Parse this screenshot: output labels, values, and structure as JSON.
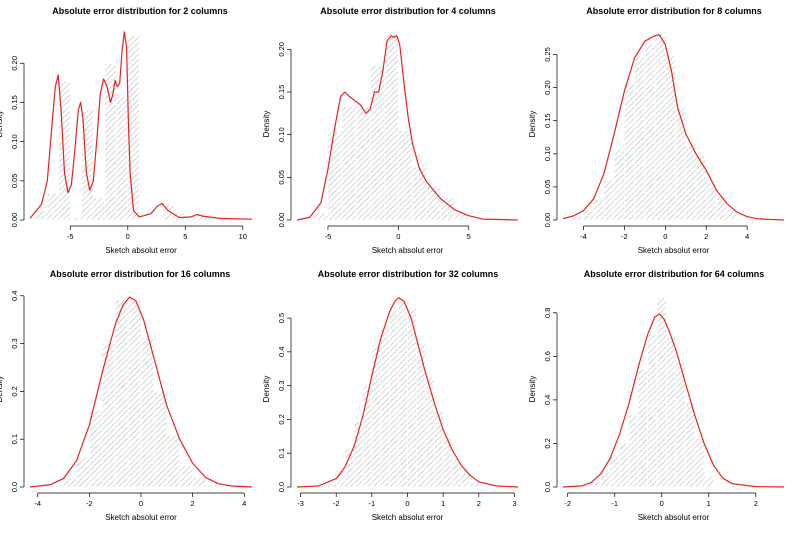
{
  "chart_data": [
    {
      "type": "histogram",
      "title": "Absolute error distribution for 2 columns",
      "xlabel": "Sketch absolut error",
      "ylabel": "Density",
      "xlim": [
        -8.5,
        10.8
      ],
      "ylim": [
        0,
        0.245
      ],
      "xticks": [
        -5,
        0,
        5,
        10
      ],
      "yticks": [
        0.0,
        0.05,
        0.1,
        0.15,
        0.2
      ],
      "ytick_labels": [
        "0.00",
        "0.05",
        "0.10",
        "0.15",
        "0.20"
      ],
      "grid": false,
      "bin_edges": [
        -8,
        -7,
        -6,
        -5,
        -4,
        -3,
        -2,
        -1,
        0,
        1,
        2,
        3,
        4,
        5,
        6,
        7
      ],
      "values": [
        0.012,
        0.034,
        0.177,
        0.003,
        0.141,
        0.028,
        0.199,
        0.158,
        0.235,
        0.0,
        0.0,
        0.02,
        0.009,
        0.002,
        0.006
      ],
      "density_curve": {
        "x": [
          -8.5,
          -7.5,
          -7,
          -6.6,
          -6.3,
          -6.05,
          -5.8,
          -5.5,
          -5.2,
          -4.9,
          -4.6,
          -4.3,
          -4.1,
          -3.9,
          -3.6,
          -3.3,
          -3.0,
          -2.7,
          -2.4,
          -2.1,
          -1.8,
          -1.5,
          -1.3,
          -1.1,
          -0.9,
          -0.7,
          -0.5,
          -0.3,
          -0.1,
          0.05,
          0.2,
          0.5,
          1.0,
          2.0,
          2.6,
          3.0,
          3.5,
          4.5,
          5.5,
          6.0,
          6.5,
          8,
          10.8
        ],
        "y": [
          0.002,
          0.02,
          0.05,
          0.12,
          0.17,
          0.185,
          0.14,
          0.06,
          0.035,
          0.045,
          0.09,
          0.14,
          0.15,
          0.13,
          0.06,
          0.038,
          0.05,
          0.1,
          0.16,
          0.18,
          0.17,
          0.15,
          0.16,
          0.178,
          0.17,
          0.175,
          0.215,
          0.24,
          0.22,
          0.13,
          0.06,
          0.012,
          0.004,
          0.008,
          0.018,
          0.021,
          0.012,
          0.003,
          0.004,
          0.007,
          0.005,
          0.002,
          0.001
        ]
      }
    },
    {
      "type": "histogram",
      "title": "Absolute error distribution for 4 columns",
      "xlabel": "Sketch absolut error",
      "ylabel": "Density",
      "xlim": [
        -7.2,
        8.5
      ],
      "ylim": [
        0,
        0.225
      ],
      "xticks": [
        -5,
        0,
        5
      ],
      "yticks": [
        0.0,
        0.05,
        0.1,
        0.15,
        0.2
      ],
      "ytick_labels": [
        "0.00",
        "0.05",
        "0.10",
        "0.15",
        "0.20"
      ],
      "grid": false,
      "bin_edges": [
        -6,
        -5,
        -4,
        -3,
        -2,
        -1,
        0,
        1,
        2,
        3,
        4,
        5
      ],
      "values": [
        0.008,
        0.103,
        0.133,
        0.133,
        0.181,
        0.218,
        0.105,
        0.062,
        0.04,
        0.026,
        0.008
      ],
      "density_curve": {
        "x": [
          -7.2,
          -6.3,
          -5.5,
          -5,
          -4.5,
          -4.1,
          -3.8,
          -3.5,
          -3.1,
          -2.7,
          -2.3,
          -2.0,
          -1.7,
          -1.4,
          -1.1,
          -0.8,
          -0.5,
          -0.3,
          -0.1,
          0.1,
          0.4,
          0.7,
          1.0,
          1.5,
          2.0,
          2.5,
          3.0,
          4.0,
          5.0,
          6.0,
          8.5
        ],
        "y": [
          0.0,
          0.003,
          0.02,
          0.06,
          0.11,
          0.145,
          0.15,
          0.145,
          0.14,
          0.135,
          0.125,
          0.13,
          0.15,
          0.15,
          0.175,
          0.21,
          0.216,
          0.214,
          0.216,
          0.205,
          0.16,
          0.12,
          0.09,
          0.06,
          0.045,
          0.035,
          0.025,
          0.012,
          0.005,
          0.001,
          0.0
        ]
      }
    },
    {
      "type": "histogram",
      "title": "Absolute error distribution for 8 columns",
      "xlabel": "Sketch absolut error",
      "ylabel": "Density",
      "xlim": [
        -5.0,
        5.8
      ],
      "ylim": [
        0,
        0.29
      ],
      "xticks": [
        -4,
        -2,
        0,
        2,
        4
      ],
      "yticks": [
        0.0,
        0.05,
        0.1,
        0.15,
        0.2,
        0.25
      ],
      "ytick_labels": [
        "0.00",
        "0.05",
        "0.10",
        "0.15",
        "0.20",
        "0.25"
      ],
      "grid": false,
      "bin_edges": [
        -4.5,
        -4,
        -3.5,
        -3,
        -2.5,
        -2,
        -1.5,
        -1,
        -0.5,
        0,
        0.5,
        1,
        1.5,
        2,
        2.5,
        3,
        3.5
      ],
      "values": [
        0.005,
        0.015,
        0.032,
        0.06,
        0.108,
        0.205,
        0.247,
        0.266,
        0.281,
        0.248,
        0.17,
        0.113,
        0.097,
        0.055,
        0.035,
        0.016
      ],
      "density_curve": {
        "x": [
          -5.0,
          -4.5,
          -4.0,
          -3.5,
          -3.0,
          -2.5,
          -2.0,
          -1.5,
          -1.0,
          -0.6,
          -0.3,
          0.0,
          0.3,
          0.6,
          1.0,
          1.5,
          2.0,
          2.5,
          3.0,
          3.5,
          4.0,
          4.5,
          5.0,
          5.8
        ],
        "y": [
          0.002,
          0.006,
          0.014,
          0.032,
          0.07,
          0.13,
          0.195,
          0.245,
          0.27,
          0.277,
          0.28,
          0.265,
          0.225,
          0.17,
          0.13,
          0.1,
          0.075,
          0.045,
          0.025,
          0.012,
          0.005,
          0.002,
          0.001,
          0.0
        ]
      }
    },
    {
      "type": "histogram",
      "title": "Absolute error distribution for 16 columns",
      "xlabel": "Sketch absolut error",
      "ylabel": "Density",
      "xlim": [
        -4.3,
        4.3
      ],
      "ylim": [
        0,
        0.41
      ],
      "xticks": [
        -4,
        -2,
        0,
        2,
        4
      ],
      "yticks": [
        0.0,
        0.1,
        0.2,
        0.3,
        0.4
      ],
      "ytick_labels": [
        "0.0",
        "0.1",
        "0.2",
        "0.3",
        "0.4"
      ],
      "grid": false,
      "bin_edges": [
        -3.5,
        -3,
        -2.5,
        -2,
        -1.5,
        -1,
        -0.5,
        0,
        0.5,
        1,
        1.5,
        2,
        2.5,
        3
      ],
      "values": [
        0.004,
        0.018,
        0.062,
        0.16,
        0.3,
        0.392,
        0.39,
        0.312,
        0.2,
        0.108,
        0.045,
        0.02,
        0.004
      ],
      "density_curve": {
        "x": [
          -4.3,
          -3.5,
          -3.0,
          -2.5,
          -2.0,
          -1.5,
          -1.0,
          -0.7,
          -0.45,
          -0.2,
          0.1,
          0.5,
          1.0,
          1.5,
          2.0,
          2.5,
          3.0,
          3.5,
          4.3
        ],
        "y": [
          0.0,
          0.005,
          0.018,
          0.055,
          0.13,
          0.24,
          0.34,
          0.38,
          0.397,
          0.39,
          0.35,
          0.27,
          0.17,
          0.1,
          0.05,
          0.02,
          0.007,
          0.002,
          0.0
        ]
      }
    },
    {
      "type": "histogram",
      "title": "Absolute error distribution for 32 columns",
      "xlabel": "Sketch absolut error",
      "ylabel": "Density",
      "xlim": [
        -3.1,
        3.1
      ],
      "ylim": [
        0,
        0.58
      ],
      "xticks": [
        -3,
        -2,
        -1,
        0,
        1,
        2,
        3
      ],
      "yticks": [
        0.0,
        0.1,
        0.2,
        0.3,
        0.4,
        0.5
      ],
      "ytick_labels": [
        "0.0",
        "0.1",
        "0.2",
        "0.3",
        "0.4",
        "0.5"
      ],
      "grid": false,
      "bin_edges": [
        -2.5,
        -2.25,
        -2,
        -1.75,
        -1.5,
        -1.25,
        -1,
        -0.75,
        -0.5,
        -0.25,
        0,
        0.25,
        0.5,
        0.75,
        1,
        1.25,
        1.5,
        1.75,
        2
      ],
      "values": [
        0.005,
        0.01,
        0.048,
        0.112,
        0.195,
        0.3,
        0.42,
        0.47,
        0.52,
        0.545,
        0.53,
        0.425,
        0.325,
        0.225,
        0.145,
        0.085,
        0.04,
        0.015
      ],
      "density_curve": {
        "x": [
          -3.1,
          -2.5,
          -2.0,
          -1.75,
          -1.5,
          -1.25,
          -1.0,
          -0.75,
          -0.5,
          -0.35,
          -0.25,
          -0.1,
          0.1,
          0.3,
          0.5,
          0.75,
          1.0,
          1.25,
          1.5,
          1.75,
          2.0,
          2.5,
          3.1
        ],
        "y": [
          0.0,
          0.003,
          0.025,
          0.06,
          0.12,
          0.21,
          0.33,
          0.44,
          0.52,
          0.55,
          0.56,
          0.55,
          0.5,
          0.42,
          0.34,
          0.25,
          0.17,
          0.11,
          0.065,
          0.035,
          0.015,
          0.003,
          0.0
        ]
      }
    },
    {
      "type": "histogram",
      "title": "Absolute error distribution for 64 columns",
      "xlabel": "Sketch absolut error",
      "ylabel": "Density",
      "xlim": [
        -2.1,
        2.6
      ],
      "ylim": [
        0,
        0.9
      ],
      "xticks": [
        -2,
        -1,
        0,
        1,
        2
      ],
      "yticks": [
        0.0,
        0.2,
        0.4,
        0.6,
        0.8
      ],
      "ytick_labels": [
        "0.0",
        "0.2",
        "0.4",
        "0.6",
        "0.8"
      ],
      "grid": false,
      "bin_edges": [
        -1.7,
        -1.5,
        -1.3,
        -1.1,
        -0.9,
        -0.7,
        -0.5,
        -0.3,
        -0.1,
        0.1,
        0.3,
        0.5,
        0.7,
        0.9,
        1.1
      ],
      "values": [
        0.005,
        0.025,
        0.07,
        0.14,
        0.2,
        0.33,
        0.54,
        0.7,
        0.87,
        0.69,
        0.57,
        0.39,
        0.225,
        0.05
      ],
      "density_curve": {
        "x": [
          -2.1,
          -1.7,
          -1.5,
          -1.3,
          -1.1,
          -0.9,
          -0.7,
          -0.5,
          -0.3,
          -0.15,
          -0.05,
          0.05,
          0.15,
          0.3,
          0.5,
          0.7,
          0.9,
          1.1,
          1.3,
          1.5,
          2.0,
          2.6
        ],
        "y": [
          0.0,
          0.005,
          0.02,
          0.06,
          0.13,
          0.24,
          0.38,
          0.55,
          0.7,
          0.78,
          0.795,
          0.77,
          0.72,
          0.63,
          0.48,
          0.33,
          0.2,
          0.1,
          0.04,
          0.015,
          0.002,
          0.0
        ]
      }
    }
  ]
}
